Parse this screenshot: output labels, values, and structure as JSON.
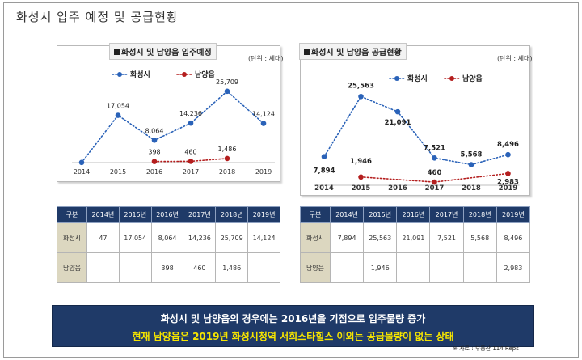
{
  "page": {
    "title": "화성시 입주 예정 및 공급현황",
    "banner_line1": "화성시 및 남양읍의 경우에는 2016년을 기점으로 입주물량 증가",
    "banner_line2": "현재 남양읍은  2019년 화성시청역 서희스타힐스 이외는 공급물량이 없는 상태",
    "source": "※ 자료 : 부동산 114 Reps"
  },
  "chart_data": [
    {
      "type": "line",
      "title": "화성시 및 남양읍 입주예정",
      "unit": "(단위 : 세대)",
      "x": [
        "2014",
        "2015",
        "2016",
        "2017",
        "2018",
        "2019"
      ],
      "series": [
        {
          "name": "화성시",
          "color": "#2a62b8",
          "values": [
            47,
            17054,
            8064,
            14236,
            25709,
            14124
          ],
          "labels": [
            "",
            "17,054",
            "8,064",
            "14,236",
            "25,709",
            "14,124"
          ]
        },
        {
          "name": "남양읍",
          "color": "#b41e1e",
          "values": [
            null,
            null,
            398,
            460,
            1486,
            null
          ],
          "labels": [
            "",
            "",
            "398",
            "460",
            "1,486",
            ""
          ]
        }
      ],
      "ylim": [
        0,
        28000
      ],
      "grid": false,
      "legend": "top"
    },
    {
      "type": "line",
      "title": "화성시 및 남양읍 공급현황",
      "unit": "(단위 : 세대)",
      "x": [
        "2014",
        "2015",
        "2016",
        "2017",
        "2018",
        "2019"
      ],
      "series": [
        {
          "name": "화성시",
          "color": "#2a62b8",
          "values": [
            7894,
            25563,
            21091,
            7521,
            5568,
            8496
          ],
          "labels": [
            "7,894",
            "25,563",
            "21,091",
            "7,521",
            "5,568",
            "8,496"
          ]
        },
        {
          "name": "남양읍",
          "color": "#b41e1e",
          "values": [
            null,
            1946,
            null,
            460,
            null,
            2983
          ],
          "labels": [
            "",
            "1,946",
            "",
            "460",
            "",
            "2,983"
          ]
        }
      ],
      "ylim": [
        0,
        28000
      ],
      "grid": false,
      "legend": "top"
    }
  ],
  "tables": [
    {
      "headers": [
        "구분",
        "2014년",
        "2015년",
        "2016년",
        "2017년",
        "2018년",
        "2019년"
      ],
      "rows": [
        [
          "화성시",
          "47",
          "17,054",
          "8,064",
          "14,236",
          "25,709",
          "14,124"
        ],
        [
          "남양읍",
          "",
          "",
          "398",
          "460",
          "1,486",
          ""
        ]
      ]
    },
    {
      "headers": [
        "구분",
        "2014년",
        "2015년",
        "2016년",
        "2017년",
        "2018년",
        "2019년"
      ],
      "rows": [
        [
          "화성시",
          "7,894",
          "25,563",
          "21,091",
          "7,521",
          "5,568",
          "8,496"
        ],
        [
          "남양읍",
          "",
          "1,946",
          "",
          "",
          "",
          "2,983"
        ]
      ]
    }
  ]
}
